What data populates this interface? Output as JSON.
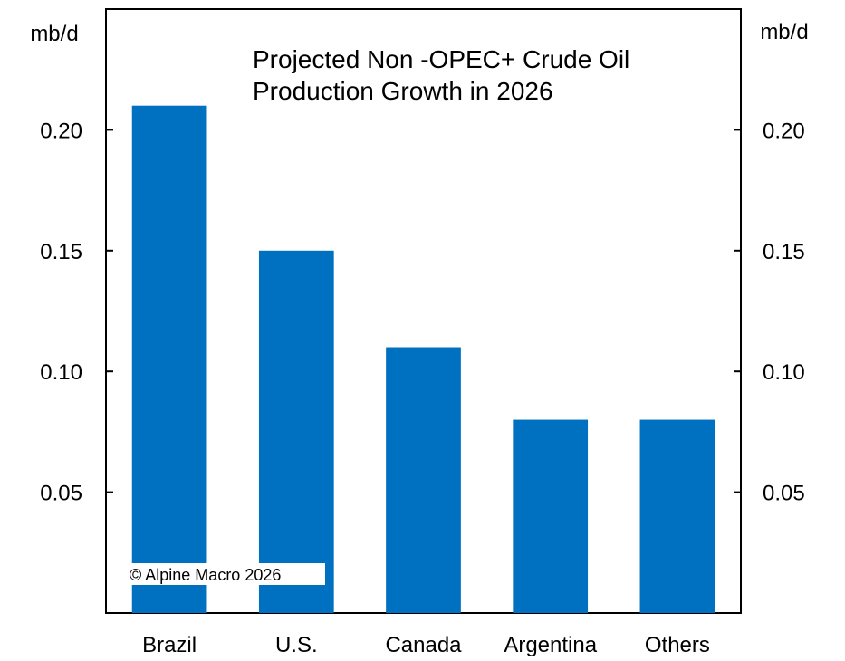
{
  "chart_data": {
    "type": "bar",
    "title": "Projected Non -OPEC+ Crude Oil Production Growth in 2026",
    "title_lines": [
      "Projected Non -OPEC+ Crude Oil",
      "Production Growth in 2026"
    ],
    "categories": [
      "Brazil",
      "U.S.",
      "Canada",
      "Argentina",
      "Others"
    ],
    "values": [
      0.21,
      0.15,
      0.11,
      0.08,
      0.08
    ],
    "ylabel_left": "mb/d",
    "ylabel_right": "mb/d",
    "ylim": [
      0.0,
      0.25
    ],
    "yticks": [
      0.05,
      0.1,
      0.15,
      0.2
    ],
    "ytick_labels": [
      "0.05",
      "0.10",
      "0.15",
      "0.20"
    ],
    "grid": false,
    "bar_color": "#0070C0",
    "source_note": "© Alpine Macro 2026"
  }
}
